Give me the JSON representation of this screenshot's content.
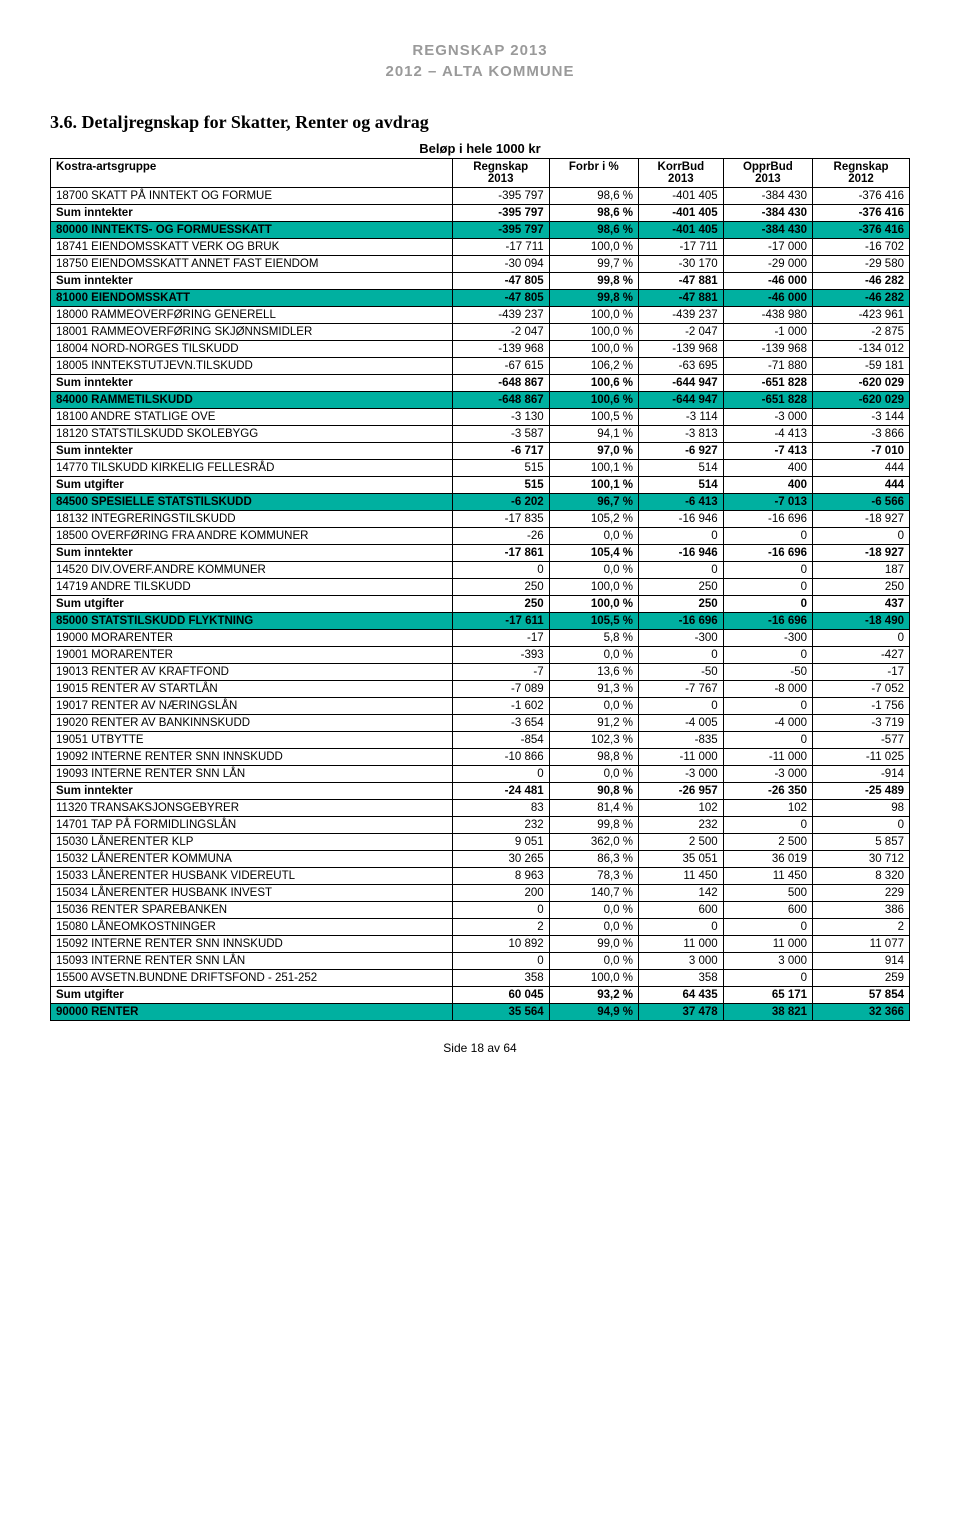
{
  "header": {
    "line1": "REGNSKAP 2013",
    "line2": "2012 – ALTA KOMMUNE"
  },
  "section": {
    "title": "3.6.    Detaljregnskap for Skatter, Renter og avdrag",
    "subtitle": "Beløp i hele 1000 kr"
  },
  "table": {
    "head": {
      "c0": "Kostra-artsgruppe",
      "c1a": "Regnskap",
      "c1b": "2013",
      "c2": "Forbr i %",
      "c3a": "KorrBud",
      "c3b": "2013",
      "c4a": "OpprBud",
      "c4b": "2013",
      "c5a": "Regnskap",
      "c5b": "2012"
    },
    "rows": [
      {
        "label": "18700 SKATT PÅ INNTEKT OG FORMUE",
        "v": [
          "-395 797",
          "98,6 %",
          "-401 405",
          "-384 430",
          "-376 416"
        ]
      },
      {
        "label": "Sum inntekter",
        "v": [
          "-395 797",
          "98,6 %",
          "-401 405",
          "-384 430",
          "-376 416"
        ],
        "bold": true
      },
      {
        "label": "80000 INNTEKTS- OG FORMUESSKATT",
        "v": [
          "-395 797",
          "98,6 %",
          "-401 405",
          "-384 430",
          "-376 416"
        ],
        "shaded": true
      },
      {
        "label": "18741 EIENDOMSSKATT VERK OG BRUK",
        "v": [
          "-17 711",
          "100,0 %",
          "-17 711",
          "-17 000",
          "-16 702"
        ]
      },
      {
        "label": "18750 EIENDOMSSKATT ANNET FAST EIENDOM",
        "v": [
          "-30 094",
          "99,7 %",
          "-30 170",
          "-29 000",
          "-29 580"
        ]
      },
      {
        "label": "Sum inntekter",
        "v": [
          "-47 805",
          "99,8 %",
          "-47 881",
          "-46 000",
          "-46 282"
        ],
        "bold": true
      },
      {
        "label": "81000 EIENDOMSSKATT",
        "v": [
          "-47 805",
          "99,8 %",
          "-47 881",
          "-46 000",
          "-46 282"
        ],
        "shaded": true
      },
      {
        "label": "18000 RAMMEOVERFØRING GENERELL",
        "v": [
          "-439 237",
          "100,0 %",
          "-439 237",
          "-438 980",
          "-423 961"
        ]
      },
      {
        "label": "18001 RAMMEOVERFØRING SKJØNNSMIDLER",
        "v": [
          "-2 047",
          "100,0 %",
          "-2 047",
          "-1 000",
          "-2 875"
        ]
      },
      {
        "label": "18004 NORD-NORGES TILSKUDD",
        "v": [
          "-139 968",
          "100,0 %",
          "-139 968",
          "-139 968",
          "-134 012"
        ]
      },
      {
        "label": "18005 INNTEKSTUTJEVN.TILSKUDD",
        "v": [
          "-67 615",
          "106,2 %",
          "-63 695",
          "-71 880",
          "-59 181"
        ]
      },
      {
        "label": "Sum inntekter",
        "v": [
          "-648 867",
          "100,6 %",
          "-644 947",
          "-651 828",
          "-620 029"
        ],
        "bold": true
      },
      {
        "label": "84000 RAMMETILSKUDD",
        "v": [
          "-648 867",
          "100,6 %",
          "-644 947",
          "-651 828",
          "-620 029"
        ],
        "shaded": true
      },
      {
        "label": "18100 ANDRE STATLIGE OVE",
        "v": [
          "-3 130",
          "100,5 %",
          "-3 114",
          "-3 000",
          "-3 144"
        ]
      },
      {
        "label": "18120 STATSTILSKUDD SKOLEBYGG",
        "v": [
          "-3 587",
          "94,1 %",
          "-3 813",
          "-4 413",
          "-3 866"
        ]
      },
      {
        "label": "Sum inntekter",
        "v": [
          "-6 717",
          "97,0 %",
          "-6 927",
          "-7 413",
          "-7 010"
        ],
        "bold": true
      },
      {
        "label": "14770 TILSKUDD KIRKELIG FELLESRÅD",
        "v": [
          "515",
          "100,1 %",
          "514",
          "400",
          "444"
        ]
      },
      {
        "label": "Sum utgifter",
        "v": [
          "515",
          "100,1 %",
          "514",
          "400",
          "444"
        ],
        "bold": true
      },
      {
        "label": "84500 SPESIELLE STATSTILSKUDD",
        "v": [
          "-6 202",
          "96,7 %",
          "-6 413",
          "-7 013",
          "-6 566"
        ],
        "shaded": true
      },
      {
        "label": "18132 INTEGRERINGSTILSKUDD",
        "v": [
          "-17 835",
          "105,2 %",
          "-16 946",
          "-16 696",
          "-18 927"
        ]
      },
      {
        "label": "18500 OVERFØRING FRA ANDRE KOMMUNER",
        "v": [
          "-26",
          "0,0 %",
          "0",
          "0",
          "0"
        ]
      },
      {
        "label": "Sum inntekter",
        "v": [
          "-17 861",
          "105,4 %",
          "-16 946",
          "-16 696",
          "-18 927"
        ],
        "bold": true
      },
      {
        "label": "14520 DIV.OVERF.ANDRE KOMMUNER",
        "v": [
          "0",
          "0,0 %",
          "0",
          "0",
          "187"
        ]
      },
      {
        "label": "14719 ANDRE TILSKUDD",
        "v": [
          "250",
          "100,0 %",
          "250",
          "0",
          "250"
        ]
      },
      {
        "label": "Sum utgifter",
        "v": [
          "250",
          "100,0 %",
          "250",
          "0",
          "437"
        ],
        "bold": true
      },
      {
        "label": "85000 STATSTILSKUDD FLYKTNING",
        "v": [
          "-17 611",
          "105,5 %",
          "-16 696",
          "-16 696",
          "-18 490"
        ],
        "shaded": true
      },
      {
        "label": "19000 MORARENTER",
        "v": [
          "-17",
          "5,8 %",
          "-300",
          "-300",
          "0"
        ]
      },
      {
        "label": "19001 MORARENTER",
        "v": [
          "-393",
          "0,0 %",
          "0",
          "0",
          "-427"
        ]
      },
      {
        "label": "19013 RENTER AV KRAFTFOND",
        "v": [
          "-7",
          "13,6 %",
          "-50",
          "-50",
          "-17"
        ]
      },
      {
        "label": "19015 RENTER AV STARTLÅN",
        "v": [
          "-7 089",
          "91,3 %",
          "-7 767",
          "-8 000",
          "-7 052"
        ]
      },
      {
        "label": "19017 RENTER AV NÆRINGSLÅN",
        "v": [
          "-1 602",
          "0,0 %",
          "0",
          "0",
          "-1 756"
        ]
      },
      {
        "label": "19020 RENTER AV BANKINNSKUDD",
        "v": [
          "-3 654",
          "91,2 %",
          "-4 005",
          "-4 000",
          "-3 719"
        ]
      },
      {
        "label": "19051 UTBYTTE",
        "v": [
          "-854",
          "102,3 %",
          "-835",
          "0",
          "-577"
        ]
      },
      {
        "label": "19092 INTERNE RENTER SNN  INNSKUDD",
        "v": [
          "-10 866",
          "98,8 %",
          "-11 000",
          "-11 000",
          "-11 025"
        ]
      },
      {
        "label": "19093 INTERNE RENTER SNN LÅN",
        "v": [
          "0",
          "0,0 %",
          "-3 000",
          "-3 000",
          "-914"
        ]
      },
      {
        "label": "Sum inntekter",
        "v": [
          "-24 481",
          "90,8 %",
          "-26 957",
          "-26 350",
          "-25 489"
        ],
        "bold": true
      },
      {
        "label": "11320 TRANSAKSJONSGEBYRER",
        "v": [
          "83",
          "81,4 %",
          "102",
          "102",
          "98"
        ]
      },
      {
        "label": "14701 TAP PÅ FORMIDLINGSLÅN",
        "v": [
          "232",
          "99,8 %",
          "232",
          "0",
          "0"
        ]
      },
      {
        "label": "15030 LÅNERENTER KLP",
        "v": [
          "9 051",
          "362,0 %",
          "2 500",
          "2 500",
          "5 857"
        ]
      },
      {
        "label": "15032 LÅNERENTER KOMMUNA",
        "v": [
          "30 265",
          "86,3 %",
          "35 051",
          "36 019",
          "30 712"
        ]
      },
      {
        "label": "15033 LÅNERENTER HUSBANK VIDEREUTL",
        "v": [
          "8 963",
          "78,3 %",
          "11 450",
          "11 450",
          "8 320"
        ]
      },
      {
        "label": "15034 LÅNERENTER HUSBANK INVEST",
        "v": [
          "200",
          "140,7 %",
          "142",
          "500",
          "229"
        ]
      },
      {
        "label": "15036 RENTER SPAREBANKEN",
        "v": [
          "0",
          "0,0 %",
          "600",
          "600",
          "386"
        ]
      },
      {
        "label": "15080 LÅNEOMKOSTNINGER",
        "v": [
          "2",
          "0,0 %",
          "0",
          "0",
          "2"
        ]
      },
      {
        "label": "15092 INTERNE RENTER SNN  INNSKUDD",
        "v": [
          "10 892",
          "99,0 %",
          "11 000",
          "11 000",
          "11 077"
        ]
      },
      {
        "label": "15093 INTERNE RENTER SNN  LÅN",
        "v": [
          "0",
          "0,0 %",
          "3 000",
          "3 000",
          "914"
        ]
      },
      {
        "label": "15500 AVSETN.BUNDNE DRIFTSFOND - 251-252",
        "v": [
          "358",
          "100,0 %",
          "358",
          "0",
          "259"
        ]
      },
      {
        "label": "Sum utgifter",
        "v": [
          "60 045",
          "93,2 %",
          "64 435",
          "65 171",
          "57 854"
        ],
        "bold": true
      },
      {
        "label": "90000 RENTER",
        "v": [
          "35 564",
          "94,9 %",
          "37 478",
          "38 821",
          "32 366"
        ],
        "shaded": true
      }
    ]
  },
  "footer": "Side 18 av 64",
  "style": {
    "shaded_bg": "#00b0a0",
    "header_gray": "#9a9a9a"
  }
}
